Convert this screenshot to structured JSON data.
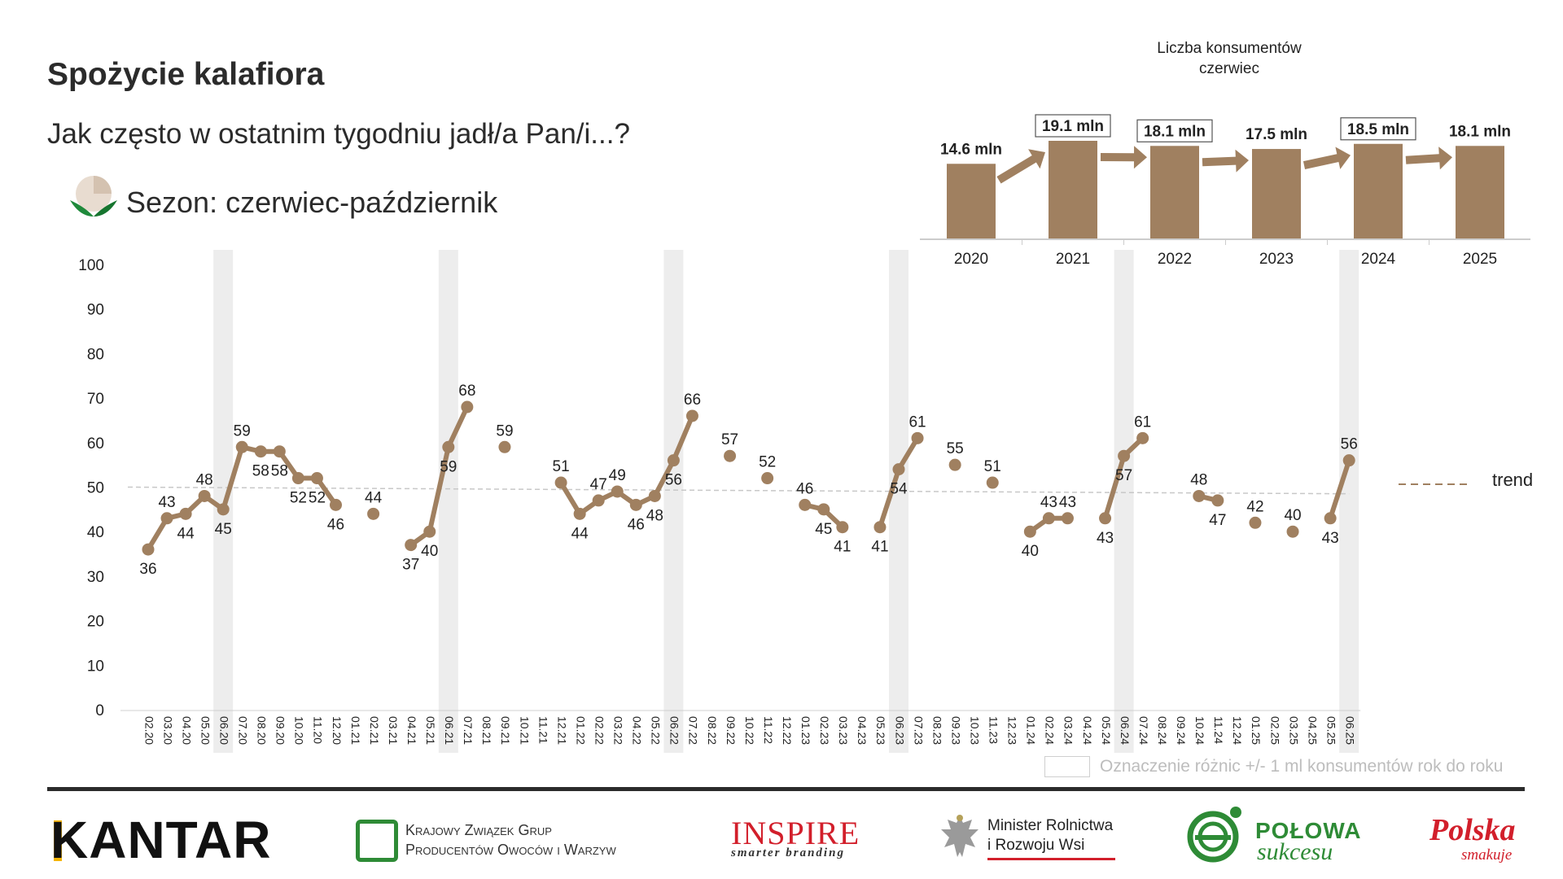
{
  "header": {
    "title": "Spożycie kalafiora",
    "subtitle": "Jak często w ostatnim tygodniu jadł/a Pan/i...?",
    "season": "Sezon: czerwiec-październik"
  },
  "legend": {
    "trend_label": "trend",
    "highlight_label": "Oznaczenie różnic +/- 1 ml konsumentów rok do roku"
  },
  "inset": {
    "title_line1": "Liczba konsumentów",
    "title_line2": "czerwiec"
  },
  "logos": {
    "kantar": "KANTAR",
    "kzg_line1": "Krajowy Związek Grup",
    "kzg_line2": "Producentów Owoców i Warzyw",
    "inspire": "INSPIRE",
    "inspire_sub": "smarter branding",
    "minister_line1": "Minister Rolnictwa",
    "minister_line2": "i Rozwoju Wsi",
    "polowa": "POŁOWA",
    "sukcesu": "sukcesu",
    "polska": "Polska",
    "smakuje": "smakuje"
  },
  "colors": {
    "series": "#a08060",
    "highlight": "#ededed",
    "trend": "#c8c8c8"
  },
  "chart_data": [
    {
      "type": "line",
      "ylim": [
        0,
        100
      ],
      "yticks": [
        0,
        10,
        20,
        30,
        40,
        50,
        60,
        70,
        80,
        90,
        100
      ],
      "x": [
        "02.20",
        "03.20",
        "04.20",
        "05.20",
        "06.20",
        "07.20",
        "08.20",
        "09.20",
        "10.20",
        "11.20",
        "12.20",
        "01.21",
        "02.21",
        "03.21",
        "04.21",
        "05.21",
        "06.21",
        "07.21",
        "08.21",
        "09.21",
        "10.21",
        "11.21",
        "12.21",
        "01.22",
        "02.22",
        "03.22",
        "04.22",
        "05.22",
        "06.22",
        "07.22",
        "08.22",
        "09.22",
        "10.22",
        "11.22",
        "12.22",
        "01.23",
        "02.23",
        "03.23",
        "04.23",
        "05.23",
        "06.23",
        "07.23",
        "08.23",
        "09.23",
        "10.23",
        "11.23",
        "12.23",
        "01.24",
        "02.24",
        "03.24",
        "04.24",
        "05.24",
        "06.24",
        "07.24",
        "08.24",
        "09.24",
        "10.24",
        "11.24",
        "12.24",
        "01.25",
        "02.25",
        "03.25",
        "04.25",
        "05.25",
        "06.25"
      ],
      "values": [
        36,
        43,
        44,
        48,
        45,
        59,
        58,
        58,
        52,
        52,
        46,
        null,
        44,
        null,
        37,
        40,
        59,
        68,
        null,
        59,
        null,
        null,
        51,
        44,
        47,
        49,
        46,
        48,
        56,
        66,
        null,
        57,
        null,
        52,
        null,
        46,
        45,
        41,
        null,
        41,
        54,
        61,
        null,
        55,
        null,
        51,
        null,
        40,
        43,
        43,
        null,
        43,
        57,
        61,
        null,
        null,
        48,
        47,
        null,
        42,
        null,
        40,
        null,
        43,
        56
      ],
      "data_labels": [
        "36",
        "43",
        "44",
        "48",
        "45",
        "59",
        "58",
        "58",
        "52",
        "52",
        "46",
        "",
        "44",
        "",
        "37",
        "40",
        "59",
        "68",
        "",
        "59",
        "",
        "",
        "51",
        "44",
        "47",
        "49",
        "46",
        "48",
        "56",
        "66",
        "",
        "57",
        "",
        "52",
        "",
        "46",
        "45",
        "41",
        "",
        "41",
        "54",
        "61",
        "",
        "55",
        "",
        "51",
        "",
        "40",
        "43",
        "43",
        "",
        "43",
        "57",
        "61",
        "",
        "",
        "48",
        "47",
        "",
        "42",
        "",
        "40",
        "",
        "43",
        "56"
      ],
      "highlighted_x": [
        "06.20",
        "06.21",
        "06.22",
        "06.23",
        "06.24",
        "06.25"
      ],
      "trend": [
        50,
        48.5
      ]
    },
    {
      "type": "bar",
      "title": "Liczba konsumentów czerwiec",
      "categories": [
        "2020",
        "2021",
        "2022",
        "2023",
        "2024",
        "2025"
      ],
      "values": [
        14.6,
        19.1,
        18.1,
        17.5,
        18.5,
        18.1
      ],
      "value_labels": [
        "14.6 mln",
        "19.1 mln",
        "18.1 mln",
        "17.5 mln",
        "18.5 mln",
        "18.1 mln"
      ],
      "boxed": [
        false,
        true,
        true,
        false,
        true,
        false
      ]
    }
  ]
}
